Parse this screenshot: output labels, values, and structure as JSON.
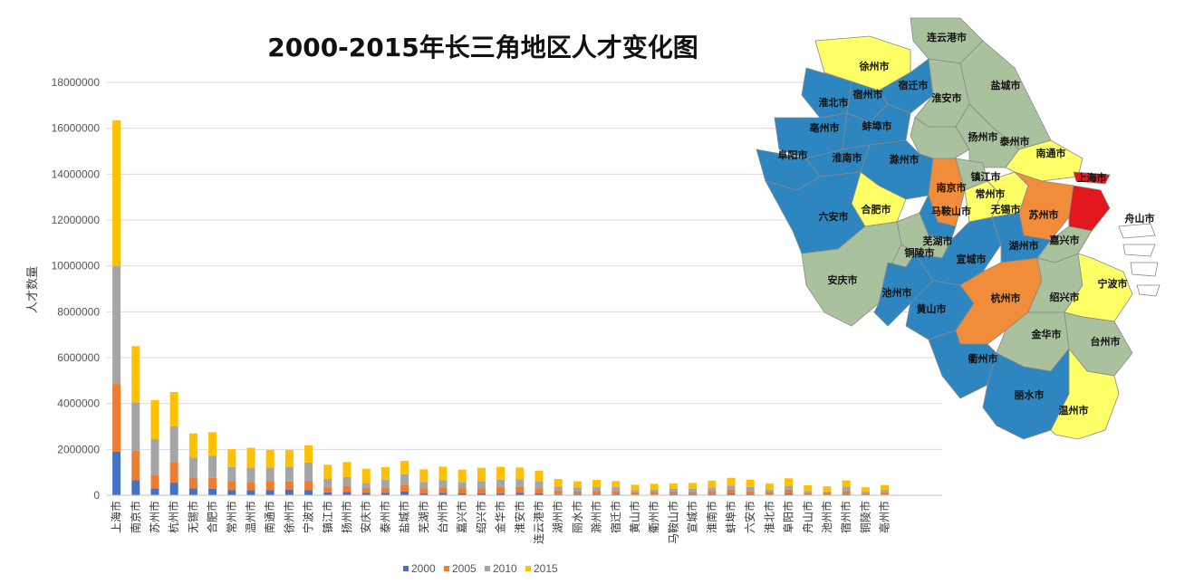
{
  "chart_data": {
    "type": "bar",
    "stacked": true,
    "title": "2000-2015年长三角地区人才变化图",
    "ylabel": "人才数量",
    "xlabel": "",
    "ylim": [
      0,
      18000000
    ],
    "yticks": [
      "0",
      "2000000",
      "4000000",
      "6000000",
      "8000000",
      "10000000",
      "12000000",
      "14000000",
      "16000000",
      "18000000"
    ],
    "grid": true,
    "legend_position": "bottom",
    "categories": [
      "上海市",
      "南京市",
      "苏州市",
      "杭州市",
      "无锡市",
      "合肥市",
      "常州市",
      "温州市",
      "南通市",
      "徐州市",
      "宁波市",
      "镇江市",
      "扬州市",
      "安庆市",
      "泰州市",
      "盐城市",
      "芜湖市",
      "台州市",
      "嘉兴市",
      "绍兴市",
      "金华市",
      "淮安市",
      "连云港市",
      "湖州市",
      "丽水市",
      "滁州市",
      "宿迁市",
      "黄山市",
      "衢州市",
      "马鞍山市",
      "宣城市",
      "淮南市",
      "蚌埠市",
      "六安市",
      "淮北市",
      "阜阳市",
      "舟山市",
      "池州市",
      "宿州市",
      "铜陵市",
      "亳州市"
    ],
    "series": [
      {
        "name": "2000",
        "color": "#4472c4",
        "values": [
          1900000,
          650000,
          300000,
          550000,
          300000,
          280000,
          230000,
          220000,
          230000,
          250000,
          230000,
          120000,
          140000,
          100000,
          100000,
          160000,
          80000,
          100000,
          80000,
          80000,
          90000,
          100000,
          80000,
          50000,
          40000,
          40000,
          40000,
          30000,
          30000,
          40000,
          40000,
          40000,
          60000,
          40000,
          30000,
          60000,
          30000,
          20000,
          40000,
          20000,
          30000
        ]
      },
      {
        "name": "2005",
        "color": "#ed7d31",
        "values": [
          2950000,
          1300000,
          600000,
          900000,
          450000,
          480000,
          380000,
          360000,
          380000,
          350000,
          400000,
          220000,
          280000,
          220000,
          230000,
          300000,
          220000,
          230000,
          220000,
          230000,
          260000,
          260000,
          230000,
          150000,
          130000,
          150000,
          150000,
          100000,
          110000,
          130000,
          130000,
          150000,
          180000,
          150000,
          110000,
          180000,
          80000,
          80000,
          150000,
          70000,
          100000
        ]
      },
      {
        "name": "2010",
        "color": "#a5a5a5",
        "values": [
          5150000,
          2100000,
          1550000,
          1550000,
          900000,
          970000,
          620000,
          620000,
          600000,
          650000,
          800000,
          370000,
          380000,
          220000,
          350000,
          460000,
          280000,
          330000,
          280000,
          310000,
          330000,
          330000,
          300000,
          180000,
          170000,
          180000,
          170000,
          100000,
          110000,
          120000,
          120000,
          150000,
          180000,
          170000,
          110000,
          170000,
          80000,
          70000,
          180000,
          80000,
          110000
        ]
      },
      {
        "name": "2015",
        "color": "#ffc000",
        "values": [
          6350000,
          2450000,
          1700000,
          1500000,
          1050000,
          1020000,
          780000,
          870000,
          770000,
          730000,
          750000,
          620000,
          650000,
          620000,
          550000,
          580000,
          550000,
          590000,
          540000,
          580000,
          560000,
          520000,
          460000,
          330000,
          270000,
          300000,
          260000,
          230000,
          250000,
          230000,
          250000,
          300000,
          340000,
          320000,
          260000,
          330000,
          250000,
          220000,
          280000,
          180000,
          210000
        ]
      }
    ]
  },
  "map": {
    "cities": [
      {
        "name": "连云港市",
        "color": "#a9c19c"
      },
      {
        "name": "徐州市",
        "color": "#ffff66"
      },
      {
        "name": "宿迁市",
        "color": "#2e86c1"
      },
      {
        "name": "盐城市",
        "color": "#a9c19c"
      },
      {
        "name": "淮北市",
        "color": "#2e86c1"
      },
      {
        "name": "宿州市",
        "color": "#2e86c1"
      },
      {
        "name": "淮安市",
        "color": "#a9c19c"
      },
      {
        "name": "亳州市",
        "color": "#2e86c1"
      },
      {
        "name": "蚌埠市",
        "color": "#2e86c1"
      },
      {
        "name": "扬州市",
        "color": "#a9c19c"
      },
      {
        "name": "泰州市",
        "color": "#a9c19c"
      },
      {
        "name": "南通市",
        "color": "#ffff66"
      },
      {
        "name": "阜阳市",
        "color": "#2e86c1"
      },
      {
        "name": "淮南市",
        "color": "#2e86c1"
      },
      {
        "name": "滁州市",
        "color": "#2e86c1"
      },
      {
        "name": "上海市",
        "color": "#e3181d"
      },
      {
        "name": "镇江市",
        "color": "#a9c19c"
      },
      {
        "name": "南京市",
        "color": "#f08c3a"
      },
      {
        "name": "常州市",
        "color": "#ffff66"
      },
      {
        "name": "合肥市",
        "color": "#ffff66"
      },
      {
        "name": "六安市",
        "color": "#2e86c1"
      },
      {
        "name": "马鞍山市",
        "color": "#2e86c1"
      },
      {
        "name": "无锡市",
        "color": "#ffff66"
      },
      {
        "name": "苏州市",
        "color": "#f08c3a"
      },
      {
        "name": "舟山市",
        "color": "#ffffff"
      },
      {
        "name": "芜湖市",
        "color": "#a9c19c"
      },
      {
        "name": "铜陵市",
        "color": "#a9c19c"
      },
      {
        "name": "宣城市",
        "color": "#2e86c1"
      },
      {
        "name": "湖州市",
        "color": "#2e86c1"
      },
      {
        "name": "嘉兴市",
        "color": "#a9c19c"
      },
      {
        "name": "安庆市",
        "color": "#a9c19c"
      },
      {
        "name": "池州市",
        "color": "#2e86c1"
      },
      {
        "name": "杭州市",
        "color": "#f08c3a"
      },
      {
        "name": "绍兴市",
        "color": "#a9c19c"
      },
      {
        "name": "宁波市",
        "color": "#ffff66"
      },
      {
        "name": "黄山市",
        "color": "#2e86c1"
      },
      {
        "name": "金华市",
        "color": "#a9c19c"
      },
      {
        "name": "台州市",
        "color": "#a9c19c"
      },
      {
        "name": "衢州市",
        "color": "#2e86c1"
      },
      {
        "name": "丽水市",
        "color": "#2e86c1"
      },
      {
        "name": "温州市",
        "color": "#ffff66"
      }
    ]
  }
}
